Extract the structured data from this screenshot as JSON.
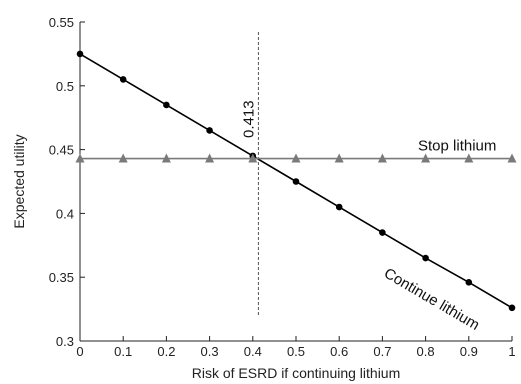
{
  "chart_data": {
    "type": "line",
    "xlabel": "Risk of ESRD if continuing lithium",
    "ylabel": "Expected utility",
    "xlim": [
      0,
      1
    ],
    "ylim": [
      0.3,
      0.55
    ],
    "xticks": [
      "0",
      "0.1",
      "0.2",
      "0.3",
      "0.4",
      "0.5",
      "0.6",
      "0.7",
      "0.8",
      "0.9",
      "1"
    ],
    "yticks": [
      "0.3",
      "0.35",
      "0.4",
      "0.45",
      "0.5",
      "0.55"
    ],
    "grid": false,
    "series": [
      {
        "name": "Continue lithium",
        "marker": "circle",
        "color": "#000000",
        "x": [
          0,
          0.1,
          0.2,
          0.3,
          0.4,
          0.5,
          0.6,
          0.7,
          0.8,
          0.9,
          1.0
        ],
        "y": [
          0.525,
          0.505,
          0.485,
          0.465,
          0.445,
          0.425,
          0.405,
          0.385,
          0.365,
          0.346,
          0.326
        ]
      },
      {
        "name": "Stop lithium",
        "marker": "triangle",
        "color": "#7a7a7a",
        "x": [
          0,
          0.1,
          0.2,
          0.3,
          0.4,
          0.5,
          0.6,
          0.7,
          0.8,
          0.9,
          1.0
        ],
        "y": [
          0.443,
          0.443,
          0.443,
          0.443,
          0.443,
          0.443,
          0.443,
          0.443,
          0.443,
          0.443,
          0.443
        ]
      }
    ],
    "threshold": {
      "x": 0.413,
      "label": "0.413"
    }
  }
}
